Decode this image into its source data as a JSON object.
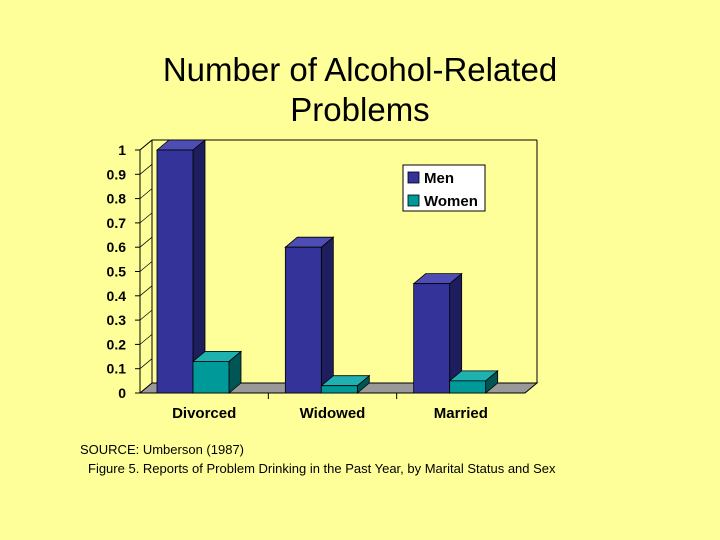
{
  "slide": {
    "title_line1": "Number of Alcohol-Related",
    "title_line2": "Problems",
    "source": "SOURCE:  Umberson (1987)",
    "caption": "Figure 5.  Reports of Problem Drinking in the Past Year, by Marital Status and Sex"
  },
  "chart_data": {
    "type": "bar",
    "categories": [
      "Divorced",
      "Widowed",
      "Married"
    ],
    "series": [
      {
        "name": "Men",
        "values": [
          1.0,
          0.6,
          0.45
        ],
        "color": "#333399",
        "side_color": "#1E1E5E",
        "top_color": "#4D4DB3"
      },
      {
        "name": "Women",
        "values": [
          0.13,
          0.03,
          0.05
        ],
        "color": "#009999",
        "side_color": "#005555",
        "top_color": "#1FB0B0"
      }
    ],
    "ylim": [
      0,
      1
    ],
    "yticks": [
      "0",
      "0.1",
      "0.2",
      "0.3",
      "0.4",
      "0.5",
      "0.6",
      "0.7",
      "0.8",
      "0.9",
      "1"
    ],
    "title": "",
    "xlabel": "",
    "ylabel": "",
    "legend_position": "top-right",
    "grid": false,
    "floor_color": "#999999"
  }
}
